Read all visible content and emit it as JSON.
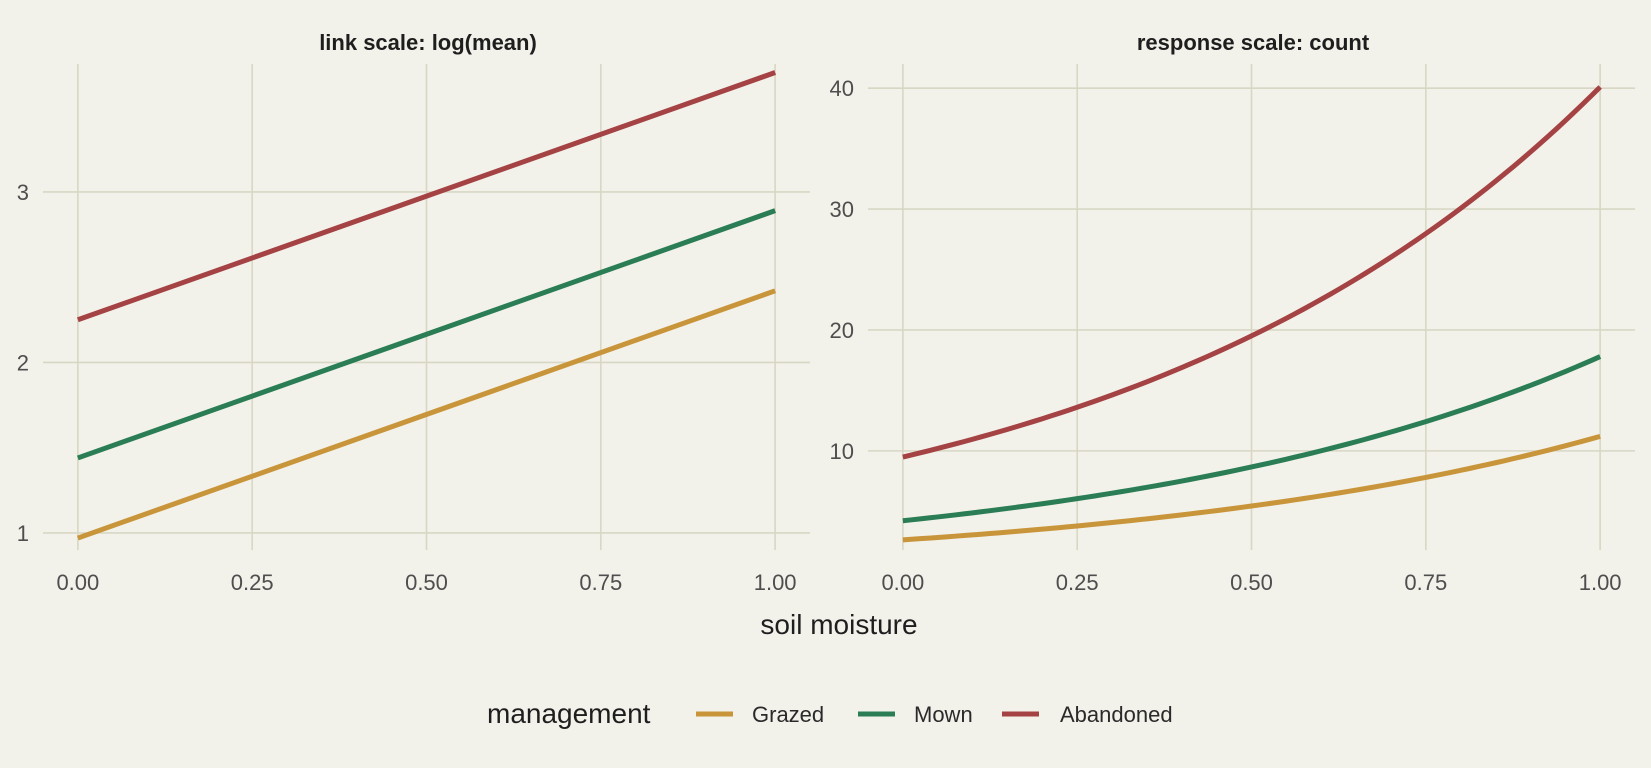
{
  "chart_data": [
    {
      "type": "line",
      "title": "link scale: log(mean)",
      "xlabel": "",
      "ylabel": "",
      "xlim": [
        -0.05,
        1.05
      ],
      "ylim": [
        0.9,
        3.75
      ],
      "x_ticks": [
        0,
        0.25,
        0.5,
        0.75,
        1
      ],
      "x_tick_labels": [
        "0.00",
        "0.25",
        "0.50",
        "0.75",
        "1.00"
      ],
      "y_ticks": [
        1,
        2,
        3
      ],
      "y_tick_labels": [
        "1",
        "2",
        "3"
      ],
      "grid": true,
      "x": [
        0,
        1
      ],
      "series": [
        {
          "name": "Grazed",
          "color": "#c9953a",
          "values": [
            0.97,
            2.42
          ]
        },
        {
          "name": "Mown",
          "color": "#2a7d55",
          "values": [
            1.44,
            2.89
          ]
        },
        {
          "name": "Abandoned",
          "color": "#a44244",
          "values": [
            2.25,
            3.7
          ]
        }
      ]
    },
    {
      "type": "line",
      "title": "response scale: count",
      "xlabel": "",
      "ylabel": "",
      "xlim": [
        -0.05,
        1.05
      ],
      "ylim": [
        1.8,
        42
      ],
      "x_ticks": [
        0,
        0.25,
        0.5,
        0.75,
        1
      ],
      "x_tick_labels": [
        "0.00",
        "0.25",
        "0.50",
        "0.75",
        "1.00"
      ],
      "y_ticks": [
        10,
        20,
        30,
        40
      ],
      "y_tick_labels": [
        "10",
        "20",
        "30",
        "40"
      ],
      "grid": true,
      "x": [
        0,
        0.125,
        0.25,
        0.375,
        0.5,
        0.625,
        0.75,
        0.875,
        1
      ],
      "series": [
        {
          "name": "Grazed",
          "color": "#c9953a",
          "values": [
            2.64,
            3.04,
            3.5,
            4.04,
            4.65,
            5.37,
            6.2,
            7.13,
            11.2
          ]
        },
        {
          "name": "Mown",
          "color": "#2a7d55",
          "values": [
            4.22,
            5.02,
            5.97,
            7.1,
            8.45,
            10.06,
            11.97,
            14.24,
            17.8
          ]
        },
        {
          "name": "Abandoned",
          "color": "#a44244",
          "values": [
            9.49,
            11.3,
            13.45,
            16.01,
            19.06,
            22.69,
            27.01,
            32.15,
            40.1
          ]
        }
      ]
    }
  ],
  "shared": {
    "x_axis_title": "soil moisture",
    "legend": {
      "title": "management",
      "position": "bottom",
      "entries": [
        {
          "label": "Grazed",
          "color": "#c9953a"
        },
        {
          "label": "Mown",
          "color": "#2a7d55"
        },
        {
          "label": "Abandoned",
          "color": "#a44244"
        }
      ]
    }
  }
}
